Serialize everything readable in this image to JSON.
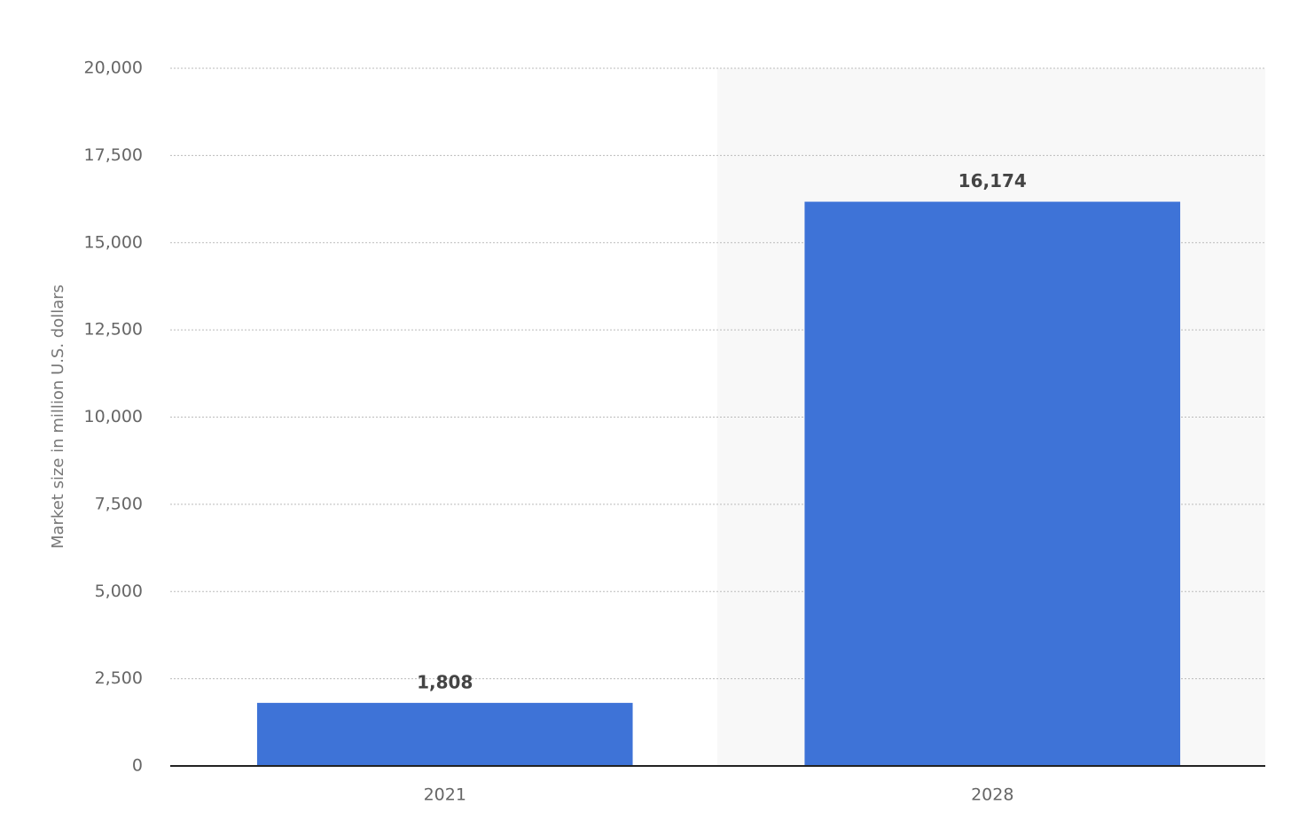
{
  "chart_data": {
    "type": "bar",
    "y_label": "Market size in million U.S. dollars",
    "categories": [
      "2021",
      "2028"
    ],
    "values": [
      1808,
      16174
    ],
    "value_labels": [
      "1,808",
      "16,174"
    ],
    "color": "#3e73d7",
    "ylim": [
      0,
      20000
    ],
    "yticks": [
      0,
      {
        "value": 2500,
        "label": "2,500"
      },
      {
        "value": 5000,
        "label": "5,000"
      },
      {
        "value": 7500,
        "label": "7,500"
      },
      {
        "value": 10000,
        "label": "10,000"
      },
      {
        "value": 12500,
        "label": "12,500"
      },
      {
        "value": 15000,
        "label": "15,000"
      },
      {
        "value": 17500,
        "label": "17,500"
      },
      {
        "value": 20000,
        "label": "20,000"
      }
    ],
    "grid": true
  }
}
